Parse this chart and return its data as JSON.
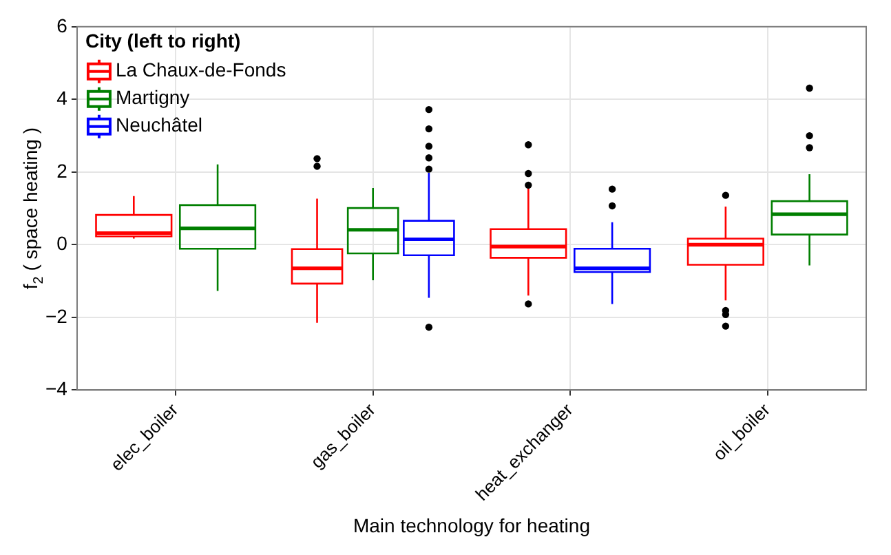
{
  "chart_data": {
    "type": "box",
    "xlabel": "Main technology for heating",
    "ylabel": "f$_{2}$ ( space heating )",
    "legend_title": "City (left to right)",
    "legend": "top left",
    "grid": true,
    "marker": "circle",
    "categories": [
      "elec_boiler",
      "gas_boiler",
      "heat_exchanger",
      "oil_boiler"
    ],
    "ylim": [
      -4,
      6
    ],
    "yticks": [
      -4,
      -2,
      0,
      2,
      4,
      6
    ],
    "series": [
      {
        "name": "La Chaux-de-Fonds",
        "color": "#ff0000",
        "boxes": [
          {
            "low": 0.17,
            "q1": 0.23,
            "median": 0.32,
            "q3": 0.82,
            "high": 1.34
          },
          {
            "low": -2.15,
            "q1": -1.07,
            "median": -0.65,
            "q3": -0.12,
            "high": 1.27,
            "outliers": [
              2.37,
              2.16
            ]
          },
          {
            "low": -1.4,
            "q1": -0.36,
            "median": -0.05,
            "q3": 0.43,
            "high": 1.6,
            "outliers": [
              2.75,
              1.96,
              1.64,
              -1.63
            ]
          },
          {
            "low": -1.53,
            "q1": -0.55,
            "median": 0.0,
            "q3": 0.17,
            "high": 1.05,
            "outliers": [
              1.36,
              -1.81,
              -1.92,
              -2.24
            ]
          }
        ]
      },
      {
        "name": "Martigny",
        "color": "#007f00",
        "boxes": [
          {
            "low": -1.27,
            "q1": -0.11,
            "median": 0.45,
            "q3": 1.09,
            "high": 2.21
          },
          {
            "low": -0.98,
            "q1": -0.24,
            "median": 0.41,
            "q3": 1.01,
            "high": 1.56
          },
          null,
          {
            "low": -0.57,
            "q1": 0.28,
            "median": 0.84,
            "q3": 1.2,
            "high": 1.94,
            "outliers": [
              4.31,
              3.0,
              2.67
            ]
          }
        ]
      },
      {
        "name": "Neuchâtel",
        "color": "#0000ff",
        "boxes": [
          null,
          {
            "low": -1.46,
            "q1": -0.29,
            "median": 0.15,
            "q3": 0.66,
            "high": 1.98,
            "outliers": [
              3.72,
              3.19,
              2.71,
              2.39,
              2.08,
              -2.27
            ]
          },
          {
            "low": -1.63,
            "q1": -0.75,
            "median": -0.65,
            "q3": -0.11,
            "high": 0.62,
            "outliers": [
              1.53,
              1.07
            ]
          },
          null
        ]
      }
    ]
  }
}
